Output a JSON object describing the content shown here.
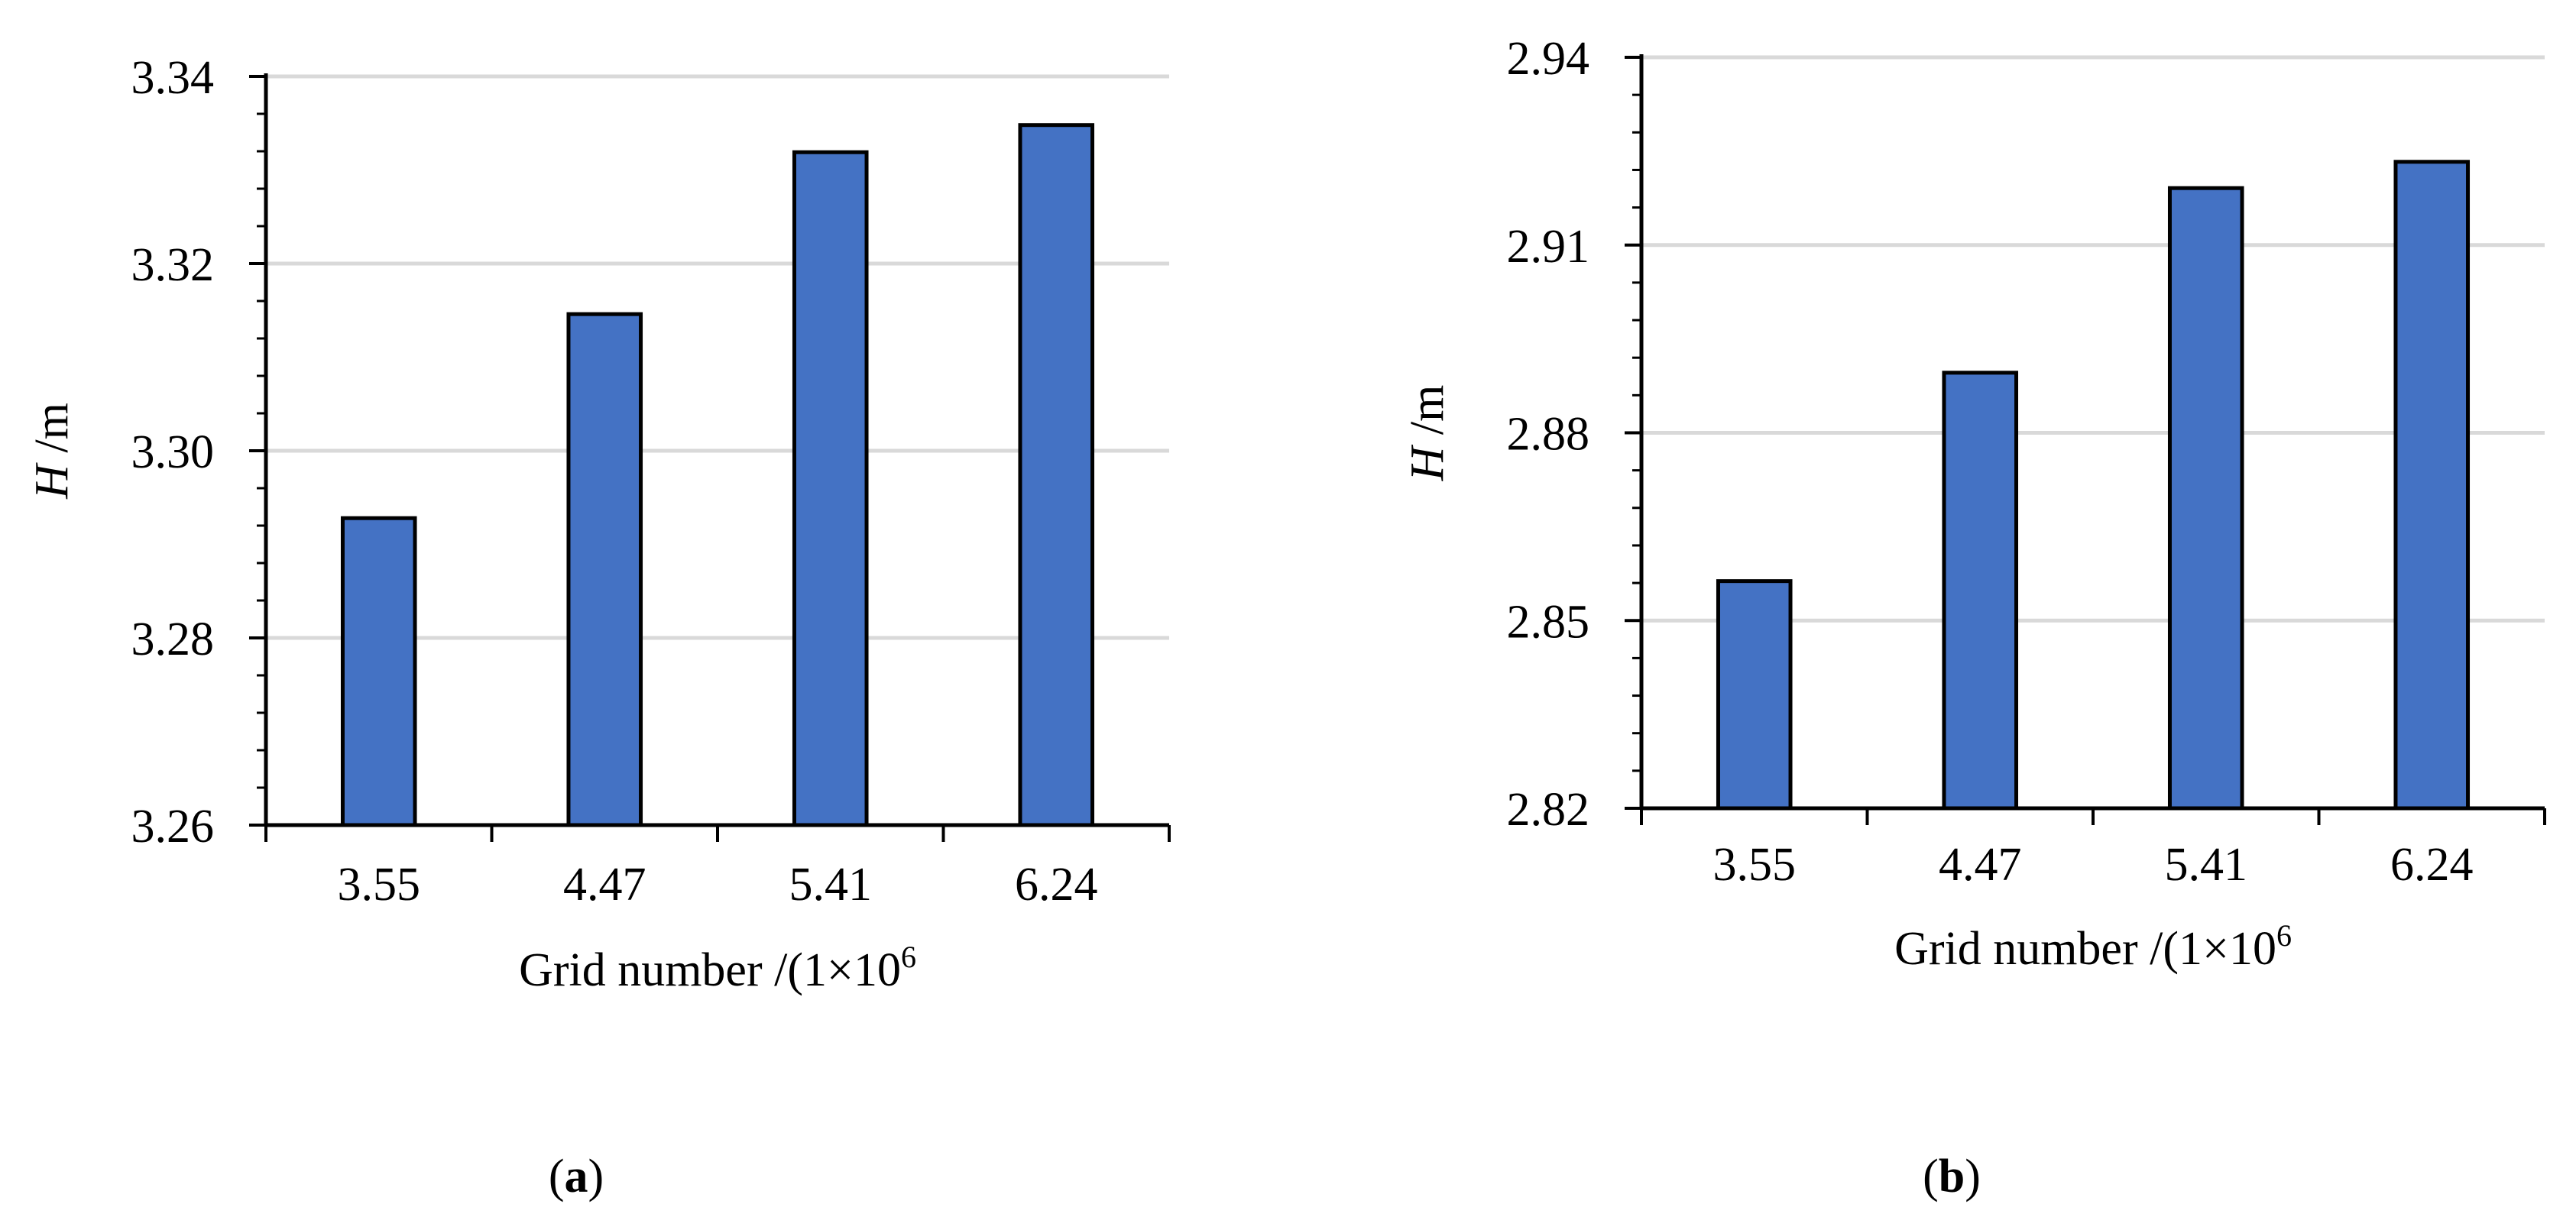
{
  "chart_data": [
    {
      "type": "bar",
      "panel_label": "(a)",
      "panel_letter": "a",
      "categories": [
        "3.55",
        "4.47",
        "5.41",
        "6.24"
      ],
      "values": [
        3.2928,
        3.3146,
        3.3319,
        3.3348
      ],
      "xlabel": "Grid number /(1×10",
      "xlabel_sup": "6",
      "ylabel_var": "H",
      "ylabel_unit": " /m",
      "ylim": [
        3.26,
        3.34
      ],
      "yticks": [
        "3.26",
        "3.28",
        "3.30",
        "3.32",
        "3.34"
      ],
      "grid": true,
      "bar_color": "#4472c4"
    },
    {
      "type": "bar",
      "panel_label": "(b)",
      "panel_letter": "b",
      "categories": [
        "3.55",
        "4.47",
        "5.41",
        "6.24"
      ],
      "values": [
        2.8563,
        2.8896,
        2.9191,
        2.9233
      ],
      "xlabel": "Grid number /(1×10",
      "xlabel_sup": "6",
      "ylabel_var": "H",
      "ylabel_unit": " /m",
      "ylim": [
        2.82,
        2.94
      ],
      "yticks": [
        "2.82",
        "2.85",
        "2.88",
        "2.91",
        "2.94"
      ],
      "grid": true,
      "bar_color": "#4472c4"
    }
  ]
}
